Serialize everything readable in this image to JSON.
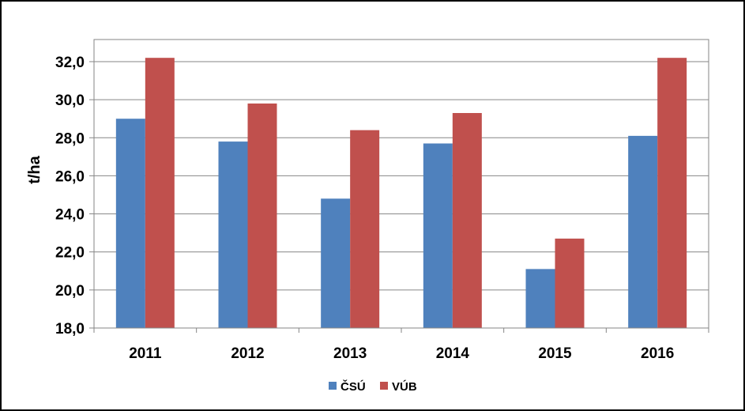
{
  "chart_data": {
    "type": "bar",
    "title": "",
    "xlabel": "",
    "ylabel": "t/ha",
    "categories": [
      "2011",
      "2012",
      "2013",
      "2014",
      "2015",
      "2016"
    ],
    "series": [
      {
        "name": "ČSÚ",
        "color": "#4F81BD",
        "values": [
          29.0,
          27.8,
          24.8,
          27.7,
          21.1,
          28.1
        ]
      },
      {
        "name": "VÚB",
        "color": "#C0504D",
        "values": [
          32.2,
          29.8,
          28.4,
          29.3,
          22.7,
          32.2
        ]
      }
    ],
    "ylim": [
      18.0,
      32.0
    ],
    "yticks": [
      "18,0",
      "20,0",
      "22,0",
      "24,0",
      "26,0",
      "28,0",
      "30,0",
      "32,0"
    ],
    "ytick_values": [
      18,
      20,
      22,
      24,
      26,
      28,
      30,
      32
    ],
    "grid": true,
    "legend": "bottom"
  }
}
